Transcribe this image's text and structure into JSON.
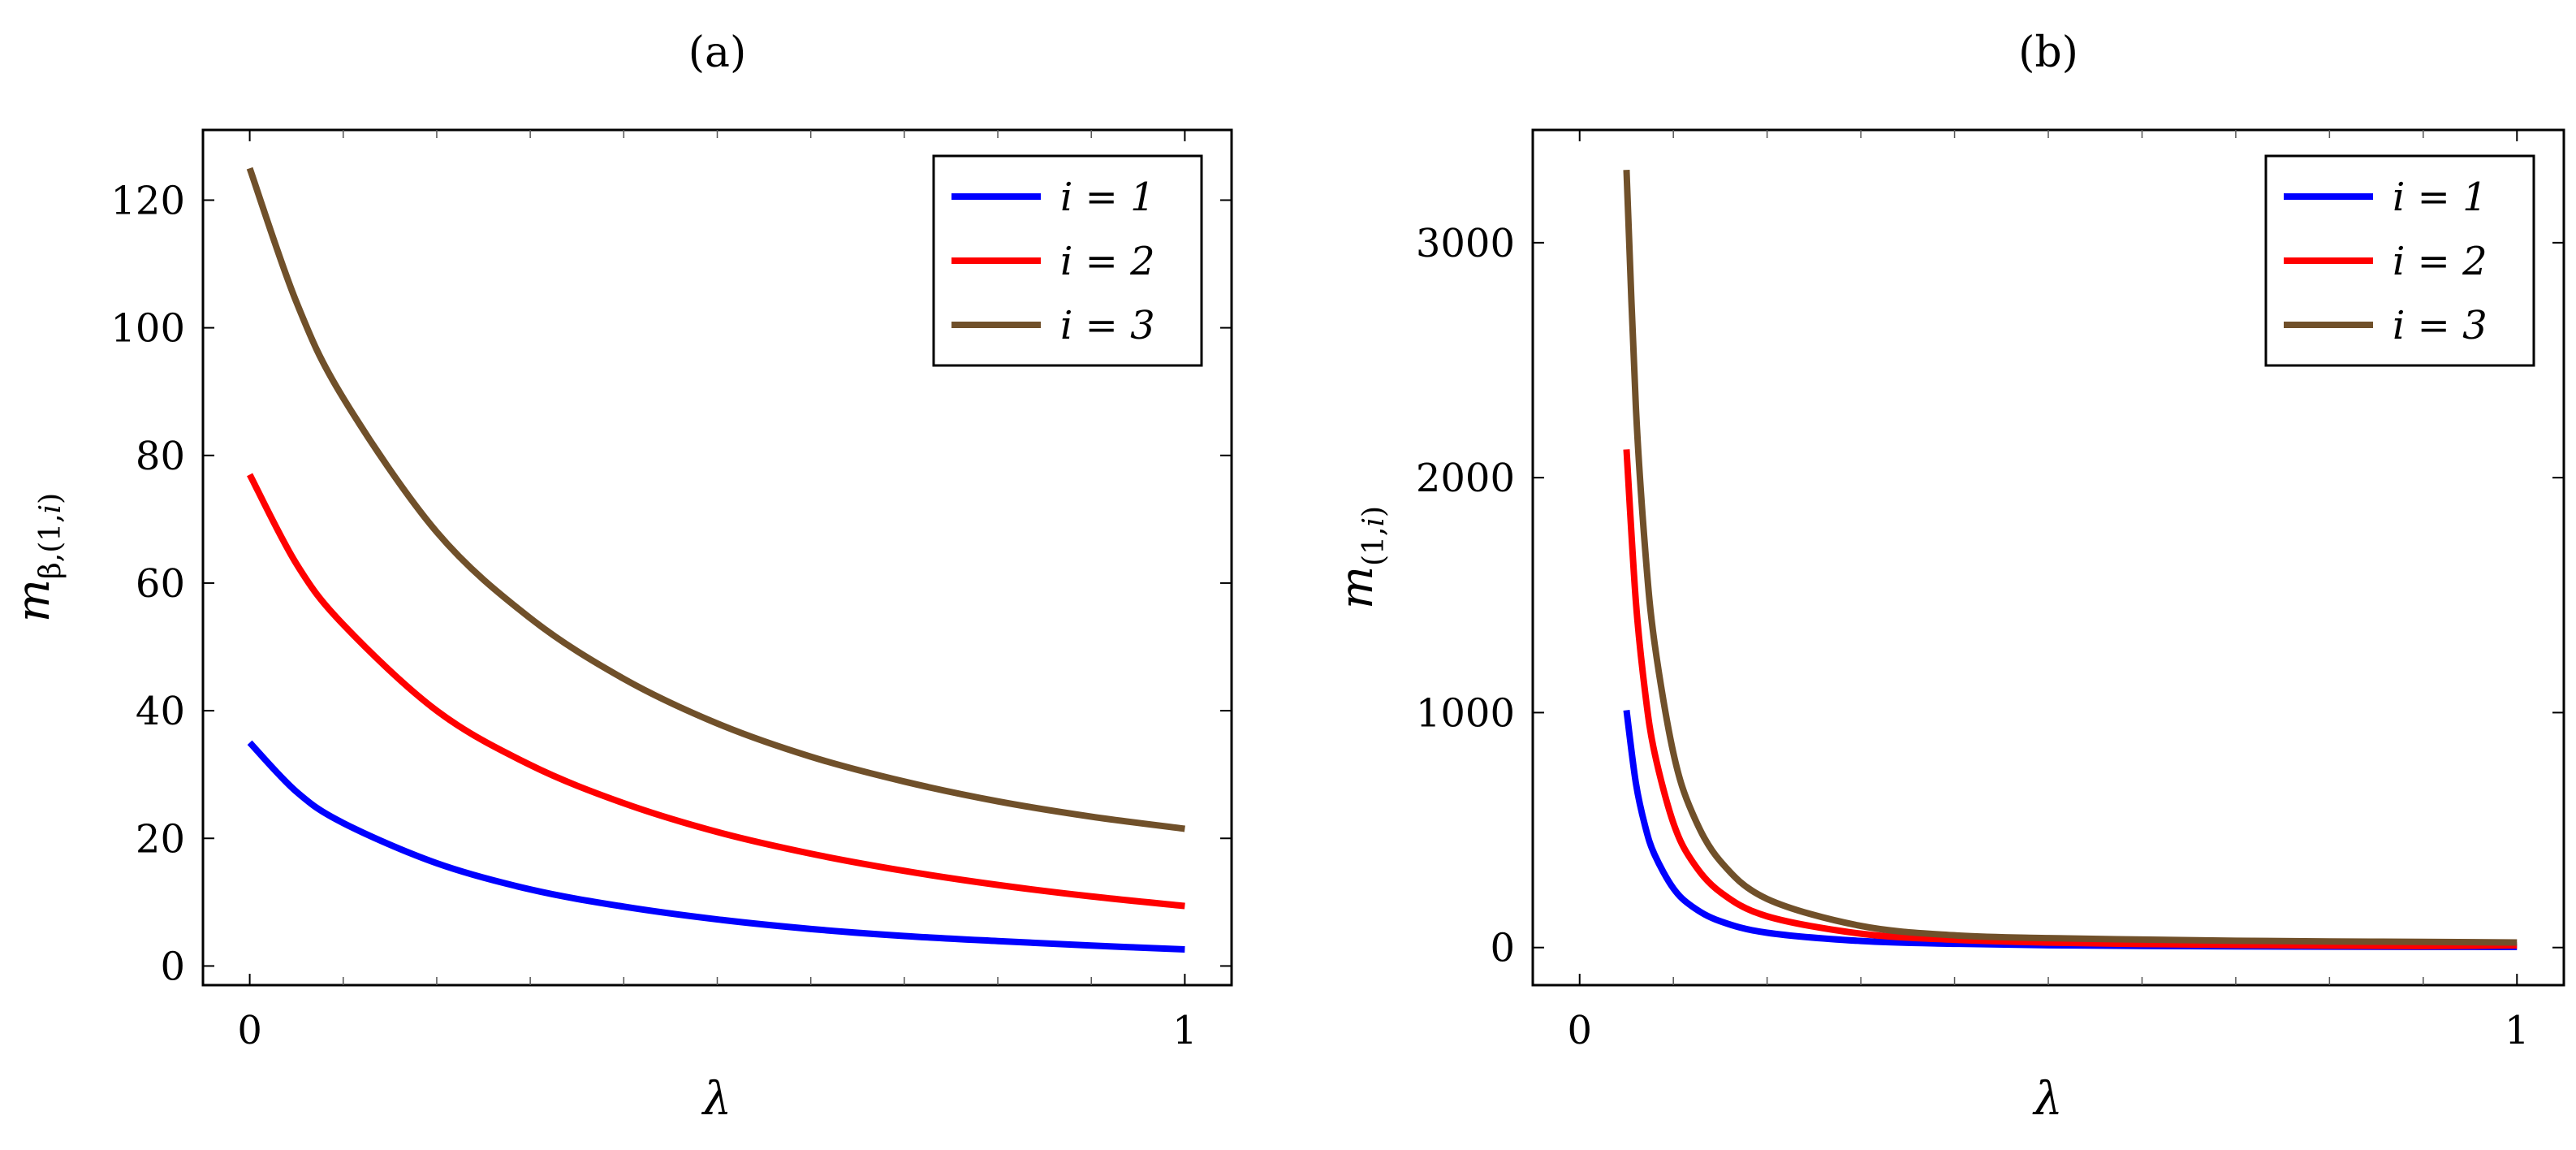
{
  "chart_data": [
    {
      "type": "line",
      "panel": "(a)",
      "title": "(a)",
      "xlabel": "λ",
      "ylabel": {
        "base": "m",
        "sub_pre": "β,(1,",
        "sub_var": "i",
        "sub_post": ")"
      },
      "xlim": [
        -0.05,
        1.05
      ],
      "ylim": [
        -3,
        131
      ],
      "xticks": [
        0,
        1
      ],
      "xtick_labels": [
        "0",
        "1"
      ],
      "yticks": [
        0,
        20,
        40,
        60,
        80,
        100,
        120
      ],
      "ytick_labels": [
        "0",
        "20",
        "40",
        "60",
        "80",
        "100",
        "120"
      ],
      "x_minor_ticks": [
        0.1,
        0.2,
        0.3,
        0.4,
        0.5,
        0.6,
        0.7,
        0.8,
        0.9
      ],
      "legend_position": "top-right",
      "series": [
        {
          "name": "i = 1",
          "color": "#0000ff",
          "x": [
            0,
            0.05,
            0.1,
            0.2,
            0.3,
            0.4,
            0.5,
            0.6,
            0.7,
            0.8,
            0.9,
            1.0
          ],
          "values": [
            35,
            27.3,
            22.4,
            16.1,
            12.0,
            9.3,
            7.3,
            5.8,
            4.7,
            3.9,
            3.2,
            2.6
          ]
        },
        {
          "name": "i = 2",
          "color": "#ff0000",
          "x": [
            0,
            0.05,
            0.1,
            0.2,
            0.3,
            0.4,
            0.5,
            0.6,
            0.7,
            0.8,
            0.9,
            1.0
          ],
          "values": [
            77,
            63.0,
            53.5,
            40.0,
            31.5,
            25.5,
            21.0,
            17.6,
            14.9,
            12.7,
            10.9,
            9.4
          ]
        },
        {
          "name": "i = 3",
          "color": "#70502a",
          "x": [
            0,
            0.05,
            0.1,
            0.2,
            0.3,
            0.4,
            0.5,
            0.6,
            0.7,
            0.8,
            0.9,
            1.0
          ],
          "values": [
            125,
            104.0,
            89.0,
            68.0,
            54.5,
            45.0,
            38.0,
            32.8,
            28.9,
            25.8,
            23.4,
            21.5
          ]
        }
      ]
    },
    {
      "type": "line",
      "panel": "(b)",
      "title": "(b)",
      "xlabel": "λ",
      "ylabel": {
        "base": "m",
        "sub_pre": "(1,",
        "sub_var": "i",
        "sub_post": ")"
      },
      "xlim": [
        -0.05,
        1.05
      ],
      "ylim": [
        -160,
        3480
      ],
      "xticks": [
        0,
        1
      ],
      "xtick_labels": [
        "0",
        "1"
      ],
      "yticks": [
        0,
        1000,
        2000,
        3000
      ],
      "ytick_labels": [
        "0",
        "1000",
        "2000",
        "3000"
      ],
      "x_minor_ticks": [
        0.1,
        0.2,
        0.3,
        0.4,
        0.5,
        0.6,
        0.7,
        0.8,
        0.9
      ],
      "legend_position": "top-right",
      "series": [
        {
          "name": "i = 1",
          "color": "#0000ff",
          "x": [
            0.05,
            0.06,
            0.07,
            0.08,
            0.1,
            0.12,
            0.15,
            0.2,
            0.3,
            0.4,
            0.5,
            0.6,
            0.7,
            0.8,
            0.9,
            1.0
          ],
          "values": [
            1010,
            700,
            515,
            395,
            252,
            175,
            112,
            63,
            28,
            16,
            10,
            7,
            5.1,
            3.9,
            3.1,
            2.5
          ]
        },
        {
          "name": "i = 2",
          "color": "#ff0000",
          "x": [
            0.05,
            0.06,
            0.07,
            0.08,
            0.1,
            0.12,
            0.15,
            0.2,
            0.3,
            0.4,
            0.5,
            0.6,
            0.7,
            0.8,
            0.9,
            1.0
          ],
          "values": [
            2120,
            1472,
            1082,
            828,
            530,
            368,
            236,
            133,
            59,
            33,
            21,
            15,
            11,
            8.3,
            6.5,
            9.4
          ]
        },
        {
          "name": "i = 3",
          "color": "#70502a",
          "x": [
            0.05,
            0.06,
            0.07,
            0.08,
            0.1,
            0.12,
            0.15,
            0.2,
            0.3,
            0.4,
            0.5,
            0.6,
            0.7,
            0.8,
            0.9,
            1.0
          ],
          "values": [
            3310,
            2300,
            1690,
            1294,
            828,
            575,
            368,
            207,
            92,
            52,
            40,
            34,
            29,
            26,
            24,
            21.5
          ]
        }
      ]
    }
  ]
}
